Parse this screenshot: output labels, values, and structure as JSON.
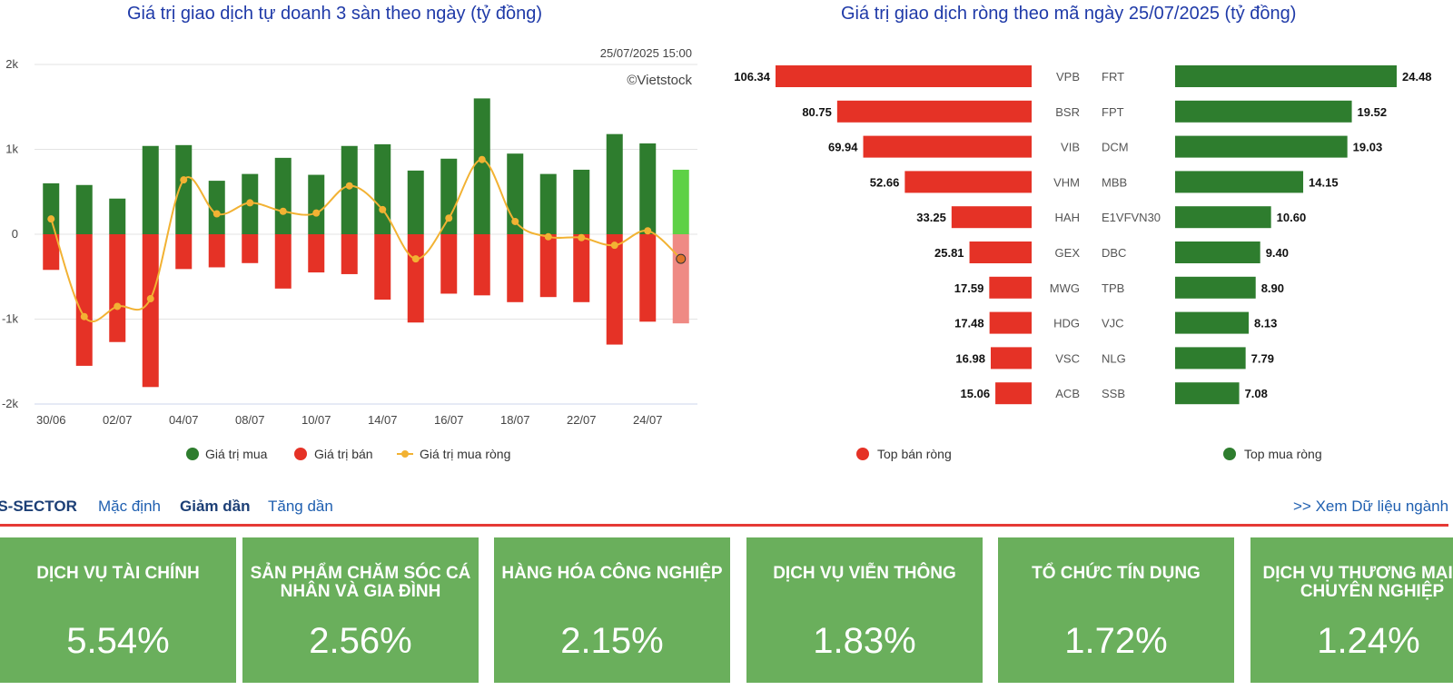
{
  "chart_data": [
    {
      "type": "bar",
      "title": "Giá trị giao dịch tự doanh 3 sàn theo ngày (tỷ đồng)",
      "timestamp": "25/07/2025 15:00",
      "credit": "©Vietstock",
      "ylim": [
        -2000,
        2000
      ],
      "y_ticks": [
        2000,
        1000,
        0,
        -1000,
        -2000
      ],
      "y_tick_labels": [
        "2k",
        "1k",
        "0",
        "-1k",
        "-2k"
      ],
      "x_tick_labels": [
        "30/06",
        "02/07",
        "04/07",
        "08/07",
        "10/07",
        "14/07",
        "16/07",
        "18/07",
        "22/07",
        "24/07"
      ],
      "categories": [
        "30/06",
        "01/07",
        "02/07",
        "03/07",
        "04/07",
        "07/07",
        "08/07",
        "09/07",
        "10/07",
        "11/07",
        "14/07",
        "15/07",
        "16/07",
        "17/07",
        "18/07",
        "21/07",
        "22/07",
        "23/07",
        "24/07",
        "25/07"
      ],
      "series": [
        {
          "name": "Giá trị mua",
          "color": "#2e7d2e",
          "values": [
            600,
            580,
            420,
            1040,
            1050,
            630,
            710,
            900,
            700,
            1040,
            1060,
            750,
            890,
            1600,
            950,
            710,
            760,
            1180,
            1070,
            760
          ]
        },
        {
          "name": "Giá trị bán",
          "color": "#e53226",
          "values": [
            -420,
            -1550,
            -1270,
            -1800,
            -410,
            -390,
            -340,
            -640,
            -450,
            -470,
            -770,
            -1040,
            -700,
            -720,
            -800,
            -740,
            -800,
            -1300,
            -1030,
            -1050
          ]
        },
        {
          "name": "Giá trị mua ròng",
          "color": "#f2b233",
          "values": [
            180,
            -970,
            -850,
            -760,
            640,
            240,
            370,
            270,
            250,
            570,
            290,
            -290,
            190,
            880,
            150,
            -30,
            -40,
            -130,
            40,
            -290
          ]
        }
      ],
      "legend": [
        "Giá trị mua",
        "Giá trị bán",
        "Giá trị mua ròng"
      ]
    },
    {
      "type": "bar",
      "title": "Giá trị giao dịch ròng theo mã ngày 25/07/2025 (tỷ đồng)",
      "sell": {
        "name": "Top bán ròng",
        "color": "#e53226",
        "codes": [
          "VPB",
          "BSR",
          "VIB",
          "VHM",
          "HAH",
          "GEX",
          "MWG",
          "HDG",
          "VSC",
          "ACB"
        ],
        "values": [
          106.34,
          80.75,
          69.94,
          52.66,
          33.25,
          25.81,
          17.59,
          17.48,
          16.98,
          15.06
        ],
        "labels": [
          "106.34",
          "80.75",
          "69.94",
          "52.66",
          "33.25",
          "25.81",
          "17.59",
          "17.48",
          "16.98",
          "15.06"
        ]
      },
      "buy": {
        "name": "Top mua ròng",
        "color": "#2e7d2e",
        "codes": [
          "FRT",
          "FPT",
          "DCM",
          "MBB",
          "E1VFVN30",
          "DBC",
          "TPB",
          "VJC",
          "NLG",
          "SSB"
        ],
        "values": [
          24.48,
          19.52,
          19.03,
          14.15,
          10.6,
          9.4,
          8.9,
          8.13,
          7.79,
          7.08
        ],
        "labels": [
          "24.48",
          "19.52",
          "19.03",
          "14.15",
          "10.60",
          "9.40",
          "8.90",
          "8.13",
          "7.79",
          "7.08"
        ]
      }
    }
  ],
  "sector": {
    "title": "VS-SECTOR",
    "sort_default": "Mặc định",
    "sort_desc": "Giảm dần",
    "sort_asc": "Tăng dần",
    "link": ">> Xem Dữ liệu ngành",
    "cards": [
      {
        "name": "DỊCH VỤ TÀI CHÍNH",
        "value": "5.54%"
      },
      {
        "name": "SẢN PHẨM CHĂM SÓC CÁ NHÂN VÀ GIA ĐÌNH",
        "value": "2.56%"
      },
      {
        "name": "HÀNG HÓA CÔNG NGHIỆP",
        "value": "2.15%"
      },
      {
        "name": "DỊCH VỤ VIỄN THÔNG",
        "value": "1.83%"
      },
      {
        "name": "TỔ CHỨC TÍN DỤNG",
        "value": "1.72%"
      },
      {
        "name": "DỊCH VỤ THƯƠNG MẠI VÀ CHUYÊN NGHIỆP",
        "value": "1.24%"
      }
    ]
  }
}
